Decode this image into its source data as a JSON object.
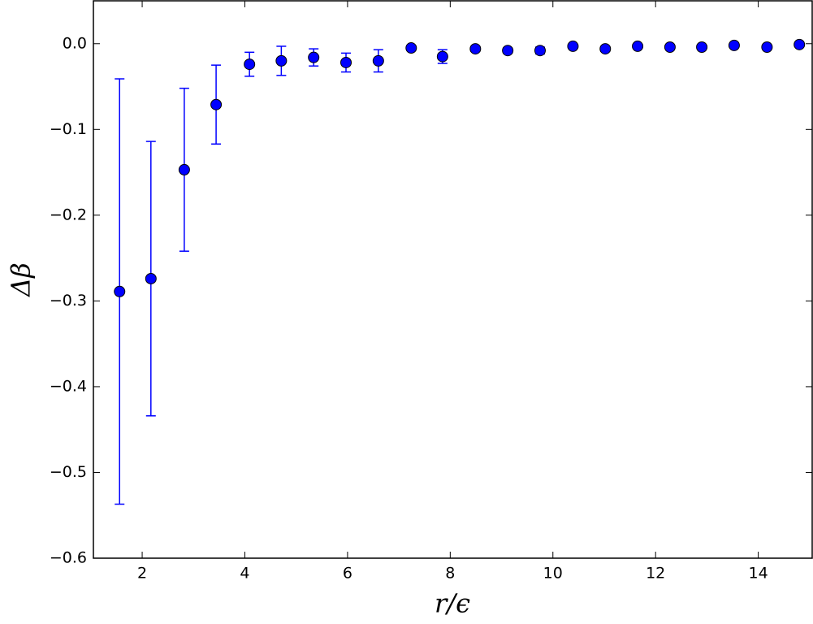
{
  "chart_data": {
    "type": "errorbar",
    "x_label": "r/ϵ",
    "y_label": "Δβ",
    "x": [
      1.56,
      2.17,
      2.82,
      3.44,
      4.09,
      4.71,
      5.34,
      5.97,
      6.6,
      7.24,
      7.85,
      8.49,
      9.12,
      9.75,
      10.39,
      11.02,
      11.65,
      12.28,
      12.9,
      13.53,
      14.17,
      14.8
    ],
    "values": [
      -0.289,
      -0.274,
      -0.147,
      -0.071,
      -0.024,
      -0.02,
      -0.016,
      -0.022,
      -0.02,
      -0.005,
      -0.015,
      -0.006,
      -0.008,
      -0.008,
      -0.003,
      -0.006,
      -0.003,
      -0.004,
      -0.004,
      -0.002,
      -0.004,
      -0.001
    ],
    "errors": [
      0.248,
      0.16,
      0.095,
      0.046,
      0.014,
      0.017,
      0.01,
      0.011,
      0.013,
      0.003,
      0.008,
      0.003,
      0.003,
      0.004,
      0.002,
      0.003,
      0.002,
      0.002,
      0.002,
      0.002,
      0.002,
      0.002
    ],
    "color": "#0000ff",
    "xlim": [
      1.05,
      15.05
    ],
    "ylim": [
      -0.6,
      0.05
    ],
    "xticks": [
      2,
      4,
      6,
      8,
      10,
      12,
      14
    ],
    "yticks": [
      {
        "value": -0.6,
        "label": "−0.6"
      },
      {
        "value": -0.5,
        "label": "−0.5"
      },
      {
        "value": -0.4,
        "label": "−0.4"
      },
      {
        "value": -0.3,
        "label": "−0.3"
      },
      {
        "value": -0.2,
        "label": "−0.2"
      },
      {
        "value": -0.1,
        "label": "−0.1"
      },
      {
        "value": 0,
        "label": "0.0"
      }
    ]
  }
}
